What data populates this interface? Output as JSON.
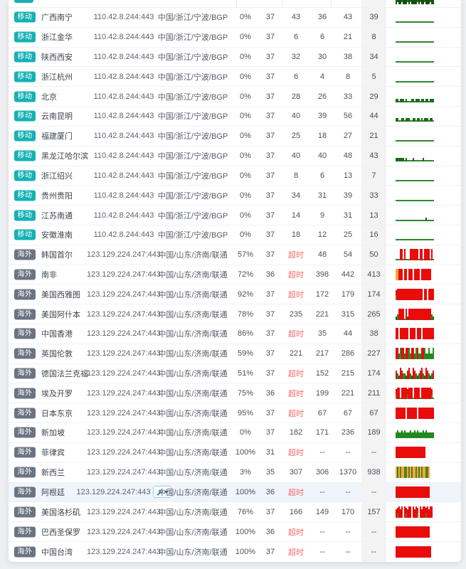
{
  "labels": {
    "timeout": "超时",
    "empty": "--"
  },
  "colors": {
    "badge_mobile": "#14b1b5",
    "badge_overseas": "#6a7482",
    "timeout_text": "#f56c6c",
    "spark_green": "#2c8a2c",
    "spark_red": "#ea0b0b",
    "spark_orange": "#f0a93a"
  },
  "badge_types": {
    "mobile": {
      "label": "移动",
      "color": "#14b1b5"
    },
    "overseas": {
      "label": "海外",
      "color": "#6a7482"
    }
  },
  "top_partial_row": {
    "badge_type": "mobile",
    "spark": {
      "pattern": "g.gg.ggg.g.gggg.g.gg.ggg.gg"
    }
  },
  "tools_button": {
    "icon": "wrench-icon",
    "caret": "caret-down-icon"
  },
  "rows": [
    {
      "type": "mobile",
      "location": "广西南宁",
      "ip": "110.42.8.244:443",
      "resolved": "中国/浙江/宁波/BGP",
      "loss": "0%",
      "sent": "37",
      "latest": "43",
      "min": "36",
      "max": "43",
      "avg": "39",
      "spark": {
        "pattern": "...........................",
        "baseline": false
      }
    },
    {
      "type": "mobile",
      "location": "浙江金华",
      "ip": "110.42.8.244:443",
      "resolved": "中国/浙江/宁波/BGP",
      "loss": "0%",
      "sent": "37",
      "latest": "6",
      "min": "6",
      "max": "21",
      "avg": "8",
      "spark": {
        "pattern": "...........................",
        "baseline": false
      }
    },
    {
      "type": "mobile",
      "location": "陕西西安",
      "ip": "110.42.8.244:443",
      "resolved": "中国/浙江/宁波/BGP",
      "loss": "0%",
      "sent": "37",
      "latest": "32",
      "min": "30",
      "max": "38",
      "avg": "34",
      "spark": {
        "pattern": "...........................",
        "baseline": false
      }
    },
    {
      "type": "mobile",
      "location": "浙江杭州",
      "ip": "110.42.8.244:443",
      "resolved": "中国/浙江/宁波/BGP",
      "loss": "0%",
      "sent": "37",
      "latest": "6",
      "min": "4",
      "max": "8",
      "avg": "5",
      "spark": {
        "pattern": "...........................",
        "baseline": false
      }
    },
    {
      "type": "mobile",
      "location": "北京",
      "ip": "110.42.8.244:443",
      "resolved": "中国/浙江/宁波/BGP",
      "loss": "0%",
      "sent": "37",
      "latest": "28",
      "min": "26",
      "max": "33",
      "avg": "29",
      "spark": {
        "pattern": "gg.ggg.g...gg.ggg.gg.gg.ggg",
        "baseline": false
      }
    },
    {
      "type": "mobile",
      "location": "云南昆明",
      "ip": "110.42.8.244:443",
      "resolved": "中国/浙江/宁波/BGP",
      "loss": "0%",
      "sent": "37",
      "latest": "40",
      "min": "39",
      "max": "56",
      "avg": "44",
      "spark": {
        "pattern": "gg..gg.ggg..gg.gg.g.ggg.gg.",
        "baseline": false
      }
    },
    {
      "type": "mobile",
      "location": "福建厦门",
      "ip": "110.42.8.244:443",
      "resolved": "中国/浙江/宁波/BGP",
      "loss": "0%",
      "sent": "37",
      "latest": "25",
      "min": "18",
      "max": "27",
      "avg": "21",
      "spark": {
        "pattern": "...........................",
        "baseline": false
      }
    },
    {
      "type": "mobile",
      "location": "黑龙江哈尔滨",
      "ip": "110.42.8.244:443",
      "resolved": "中国/浙江/宁波/BGP",
      "loss": "0%",
      "sent": "37",
      "latest": "40",
      "min": "40",
      "max": "48",
      "avg": "43",
      "spark": {
        "pattern": "gggggg.g....g......g.......",
        "baseline": false
      }
    },
    {
      "type": "mobile",
      "location": "浙江绍兴",
      "ip": "110.42.8.244:443",
      "resolved": "中国/浙江/宁波/BGP",
      "loss": "0%",
      "sent": "37",
      "latest": "8",
      "min": "6",
      "max": "13",
      "avg": "7",
      "spark": {
        "pattern": "...........................",
        "baseline": false
      }
    },
    {
      "type": "mobile",
      "location": "贵州贵阳",
      "ip": "110.42.8.244:443",
      "resolved": "中国/浙江/宁波/BGP",
      "loss": "0%",
      "sent": "37",
      "latest": "34",
      "min": "31",
      "max": "39",
      "avg": "33",
      "spark": {
        "pattern": "...........................",
        "baseline": false
      }
    },
    {
      "type": "mobile",
      "location": "江苏南通",
      "ip": "110.42.8.244:443",
      "resolved": "中国/浙江/宁波/BGP",
      "loss": "0%",
      "sent": "37",
      "latest": "14",
      "min": "9",
      "max": "31",
      "avg": "13",
      "spark": {
        "pattern": ".....................g.....",
        "baseline": false
      }
    },
    {
      "type": "mobile",
      "location": "安徽淮南",
      "ip": "110.42.8.244:443",
      "resolved": "中国/浙江/宁波/BGP",
      "loss": "0%",
      "sent": "37",
      "latest": "18",
      "min": "12",
      "max": "25",
      "avg": "16",
      "spark": {
        "pattern": "...........................",
        "baseline": false
      }
    },
    {
      "type": "overseas",
      "location": "韩国首尔",
      "ip": "123.129.224.247:443",
      "resolved": "中国/山东/济南/联通",
      "loss": "57%",
      "sent": "37",
      "latest": "超时",
      "min": "48",
      "max": "54",
      "avg": "50",
      "spark": {
        "pattern": "...RRwR.w.RRRRRRwRRwRRRRwR.",
        "baseline": true
      }
    },
    {
      "type": "overseas",
      "location": "南非",
      "ip": "123.129.224.247:443",
      "resolved": "中国/山东/济南/联通",
      "loss": "72%",
      "sent": "36",
      "latest": "超时",
      "min": "398",
      "max": "442",
      "avg": "413",
      "spark": {
        "pattern": "YYRRRwRRwRRRwRRRRwRRRRRRRww",
        "baseline": false
      }
    },
    {
      "type": "overseas",
      "location": "美国西雅图",
      "ip": "123.129.224.247:443",
      "resolved": "中国/山东/济南/联通",
      "loss": "92%",
      "sent": "37",
      "latest": "超时",
      "min": "172",
      "max": "179",
      "avg": "174",
      "spark": {
        "pattern": "mRRRRRRRRRRRRRRRRRRwRRwRRRR",
        "baseline": false
      }
    },
    {
      "type": "overseas",
      "location": "美国阿什本",
      "ip": "123.129.224.247:443",
      "resolved": "中国/山东/济南/联通",
      "loss": "78%",
      "sent": "37",
      "latest": "235",
      "min": "221",
      "max": "315",
      "avg": "265",
      "spark": {
        "pattern": "gGRRRRwRgRRRRRRRRRRRRRRRRGg",
        "baseline": true
      }
    },
    {
      "type": "overseas",
      "location": "中国香港",
      "ip": "123.129.224.247:443",
      "resolved": "中国/山东/济南/联通",
      "loss": "86%",
      "sent": "37",
      "latest": "超时",
      "min": "35",
      "max": "44",
      "avg": "38",
      "spark": {
        "pattern": "RRwRRRRRRwRRRRwRRRwRRRRRRRR",
        "baseline": false
      }
    },
    {
      "type": "overseas",
      "location": "英国伦敦",
      "ip": "123.129.224.247:443",
      "resolved": "中国/山东/济南/联通",
      "loss": "59%",
      "sent": "37",
      "latest": "221",
      "min": "217",
      "max": "286",
      "avg": "227",
      "spark": {
        "pattern": "RRGeRRGRReGRRGeRGGRReGGeGGe",
        "baseline": true
      }
    },
    {
      "type": "overseas",
      "location": "德国法兰克福",
      "ip": "123.129.224.247:443",
      "resolved": "中国/山东/济南/联通",
      "loss": "51%",
      "sent": "37",
      "latest": "超时",
      "min": "152",
      "max": "215",
      "avg": "174",
      "spark": {
        "pattern": "hGgRhGGghRGgRhGgGhRGgRhGgGh",
        "baseline": true
      }
    },
    {
      "type": "overseas",
      "location": "埃及开罗",
      "ip": "123.129.224.247:443",
      "resolved": "中国/山东/济南/联通",
      "loss": "75%",
      "sent": "36",
      "latest": "超时",
      "min": "199",
      "max": "221",
      "avg": "211",
      "spark": {
        "pattern": "mRRwRRRRmRRRwRRRRwRRRRRRRmw",
        "baseline": true
      }
    },
    {
      "type": "overseas",
      "location": "日本东京",
      "ip": "123.129.224.247:443",
      "resolved": "中国/山东/济南/联通",
      "loss": "95%",
      "sent": "37",
      "latest": "超时",
      "min": "67",
      "max": "67",
      "avg": "67",
      "spark": {
        "pattern": "RRRRRRRwRRRRRRRwRRRRRRRRRRR",
        "baseline": false
      }
    },
    {
      "type": "overseas",
      "location": "新加坡",
      "ip": "123.129.224.247:443",
      "resolved": "中国/山东/济南/联通",
      "loss": "0%",
      "sent": "37",
      "latest": "182",
      "min": "171",
      "max": "236",
      "avg": "189",
      "spark": {
        "pattern": "GHGGHGHGGGHGGHGHGGGHGHGGGGG",
        "baseline": false
      }
    },
    {
      "type": "overseas",
      "location": "菲律宾",
      "ip": "123.129.224.247:443",
      "resolved": "中国/山东/济南/联通",
      "loss": "100%",
      "sent": "31",
      "latest": "超时",
      "min": "--",
      "max": "--",
      "avg": "--",
      "spark": {
        "pattern": "RRRRRRRRRRRRRRRRRRRRRwwwwww",
        "baseline": false
      }
    },
    {
      "type": "overseas",
      "location": "新西兰",
      "ip": "123.129.224.247:443",
      "resolved": "中国/山东/济南/联通",
      "loss": "3%",
      "sent": "35",
      "latest": "307",
      "min": "306",
      "max": "1370",
      "avg": "938",
      "spark": {
        "pattern": "YeYOYYeOYOYeYYOYeYOYYeOYwww",
        "baseline": false
      }
    },
    {
      "type": "overseas",
      "location": "阿根廷",
      "ip": "123.129.224.247:443",
      "resolved": "中国/山东/济南/联通",
      "loss": "100%",
      "sent": "36",
      "latest": "超时",
      "min": "--",
      "max": "--",
      "avg": "--",
      "spark": {
        "pattern": "RRRRRRRRRRRRRRRRRRRRRRRRwww",
        "baseline": false
      },
      "highlight": true,
      "tools": true
    },
    {
      "type": "overseas",
      "location": "美国洛杉矶",
      "ip": "123.129.224.247:443",
      "resolved": "中国/山东/济南/联通",
      "loss": "76%",
      "sent": "37",
      "latest": "166",
      "min": "149",
      "max": "170",
      "avg": "157",
      "spark": {
        "pattern": "hmRhRwRmhRRwRhRmwRhRRmRhRRw",
        "baseline": false
      }
    },
    {
      "type": "overseas",
      "location": "巴西圣保罗",
      "ip": "123.129.224.247:443",
      "resolved": "中国/山东/济南/联通",
      "loss": "100%",
      "sent": "36",
      "latest": "超时",
      "min": "--",
      "max": "--",
      "avg": "--",
      "spark": {
        "pattern": "RRRRRRRRRRRRRRRRRRRRRRRRwww",
        "baseline": false
      }
    },
    {
      "type": "overseas",
      "location": "中国台湾",
      "ip": "123.129.224.247:443",
      "resolved": "中国/山东/济南/联通",
      "loss": "100%",
      "sent": "37",
      "latest": "超时",
      "min": "--",
      "max": "--",
      "avg": "--",
      "spark": {
        "pattern": "RRRRRRRRRRRRRRRRRRRRRRRRRww",
        "baseline": false
      }
    }
  ]
}
